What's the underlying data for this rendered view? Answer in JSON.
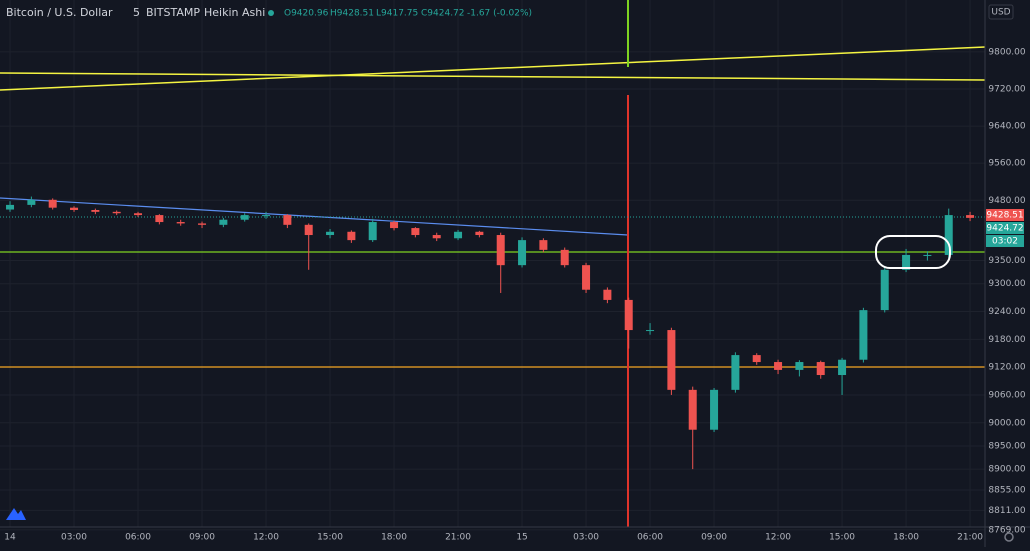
{
  "chart_data": {
    "type": "candlestick",
    "header_items": [
      "Bitcoin / U.S. Dollar",
      "5",
      "BITSTAMP",
      "Heikin Ashi"
    ],
    "readout": [
      "O9420.96",
      "H9428.51",
      "L9417.75",
      "C9424.72",
      "-1.67 (-0.02%)"
    ],
    "currency": "USD",
    "badges": [
      {
        "text": "9428.51",
        "color": "#ef5350"
      },
      {
        "text": "9424.72",
        "color": "#26a69a"
      },
      {
        "text": "03:02",
        "color": "#26a69a"
      }
    ],
    "x": [
      0,
      1,
      2,
      3,
      4,
      5,
      6,
      7,
      8,
      9,
      10,
      11,
      12,
      13,
      14,
      15,
      16,
      17,
      18,
      19,
      20,
      21,
      22,
      23,
      24,
      25,
      26,
      27,
      28,
      29,
      30,
      31,
      32,
      33,
      34,
      35,
      36,
      37,
      38,
      39,
      40,
      41,
      42,
      43,
      44,
      45
    ],
    "open": [
      9460,
      9470,
      9481,
      9464,
      9459,
      9455,
      9452,
      9448,
      9433,
      9430,
      9427,
      9438,
      9448,
      9448,
      9427,
      9405,
      9412,
      9394,
      9433,
      9420,
      9405,
      9398,
      9412,
      9405,
      9340,
      9394,
      9373,
      9340,
      9287,
      9265,
      9200,
      9200,
      9071,
      8985,
      9071,
      9146,
      9131,
      9114,
      9131,
      9103,
      9136,
      9243,
      9330,
      9362,
      9362,
      9448
    ],
    "high": [
      9478,
      9488,
      9484,
      9467,
      9462,
      9458,
      9455,
      9450,
      9438,
      9434,
      9442,
      9452,
      9455,
      9450,
      9430,
      9418,
      9415,
      9440,
      9436,
      9422,
      9410,
      9416,
      9414,
      9410,
      9400,
      9398,
      9378,
      9345,
      9292,
      9270,
      9215,
      9205,
      9078,
      9075,
      9152,
      9150,
      9136,
      9135,
      9134,
      9140,
      9248,
      9338,
      9375,
      9370,
      9462,
      9455
    ],
    "low": [
      9455,
      9465,
      9460,
      9455,
      9450,
      9448,
      9444,
      9428,
      9425,
      9420,
      9422,
      9434,
      9440,
      9420,
      9330,
      9398,
      9388,
      9390,
      9415,
      9400,
      9392,
      9394,
      9400,
      9280,
      9335,
      9368,
      9335,
      9280,
      9258,
      9160,
      9190,
      9060,
      8900,
      8980,
      9065,
      9125,
      9105,
      9100,
      9095,
      9060,
      9130,
      9238,
      9325,
      9350,
      9355,
      9435
    ],
    "close": [
      9470,
      9481,
      9464,
      9459,
      9455,
      9452,
      9448,
      9433,
      9430,
      9427,
      9438,
      9448,
      9448,
      9427,
      9405,
      9412,
      9394,
      9433,
      9420,
      9405,
      9398,
      9412,
      9405,
      9340,
      9394,
      9373,
      9340,
      9287,
      9265,
      9200,
      9200,
      9071,
      8985,
      9071,
      9146,
      9131,
      9114,
      9131,
      9103,
      9136,
      9243,
      9330,
      9362,
      9362,
      9448,
      9442
    ],
    "up_color": "#26a69a",
    "down_color": "#ef5350",
    "xlim": [
      -0.47,
      45.7
    ],
    "ylim": [
      8732,
      9912
    ],
    "xticks": [
      {
        "value": 0,
        "label": "14"
      },
      {
        "value": 3,
        "label": "03:00"
      },
      {
        "value": 6,
        "label": "06:00"
      },
      {
        "value": 9,
        "label": "09:00"
      },
      {
        "value": 12,
        "label": "12:00"
      },
      {
        "value": 15,
        "label": "15:00"
      },
      {
        "value": 18,
        "label": "18:00"
      },
      {
        "value": 21,
        "label": "21:00"
      },
      {
        "value": 24,
        "label": "15"
      },
      {
        "value": 27,
        "label": "03:00"
      },
      {
        "value": 30,
        "label": "06:00"
      },
      {
        "value": 33,
        "label": "09:00"
      },
      {
        "value": 36,
        "label": "12:00"
      },
      {
        "value": 39,
        "label": "15:00"
      },
      {
        "value": 42,
        "label": "18:00"
      },
      {
        "value": 45,
        "label": "21:00"
      }
    ],
    "yticks": [
      {
        "value": 9800,
        "label": "9800.00"
      },
      {
        "value": 9720,
        "label": "9720.00"
      },
      {
        "value": 9640,
        "label": "9640.00"
      },
      {
        "value": 9560,
        "label": "9560.00"
      },
      {
        "value": 9480,
        "label": "9480.00"
      },
      {
        "value": 9350,
        "label": "9350.00"
      },
      {
        "value": 9300,
        "label": "9300.00"
      },
      {
        "value": 9240,
        "label": "9240.00"
      },
      {
        "value": 9180,
        "label": "9180.00"
      },
      {
        "value": 9120,
        "label": "9120.00"
      },
      {
        "value": 9060,
        "label": "9060.00"
      },
      {
        "value": 9000,
        "label": "9000.00"
      },
      {
        "value": 8950,
        "label": "8950.00"
      },
      {
        "value": 8900,
        "label": "8900.00"
      },
      {
        "value": 8855,
        "label": "8855.00"
      },
      {
        "value": 8811,
        "label": "8811.00"
      },
      {
        "value": 8769,
        "label": "8769.00"
      }
    ],
    "grid": true
  }
}
